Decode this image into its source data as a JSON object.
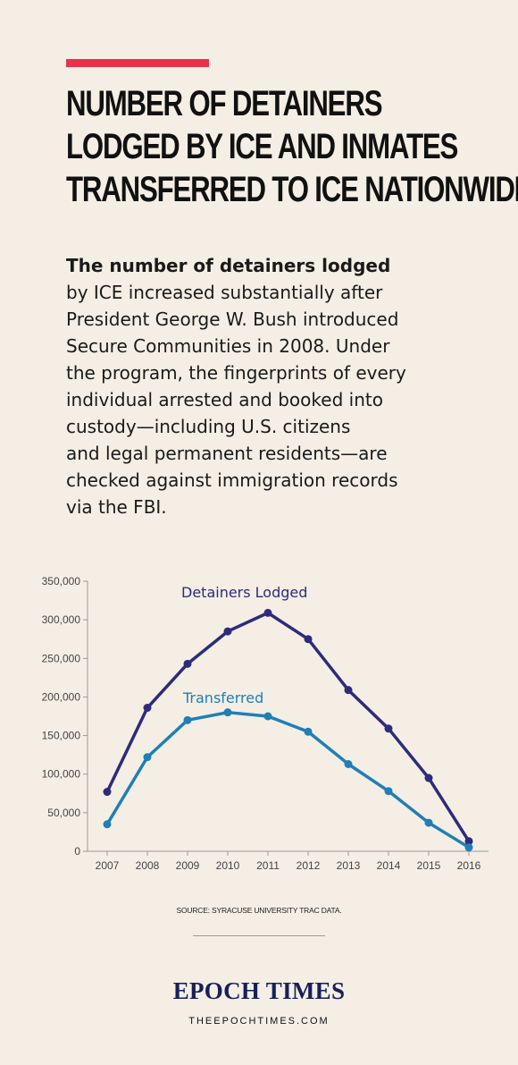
{
  "headline": {
    "lines": [
      "NUMBER OF DETAINERS",
      "LODGED BY ICE AND INMATES",
      "TRANSFERRED TO ICE NATIONWIDE"
    ]
  },
  "intro": {
    "lead": "The number of detainers lodged",
    "lines": [
      "by ICE increased substantially after",
      "President George W. Bush introduced",
      "Secure Communities in 2008. Under",
      "the program, the fingerprints of every",
      "individual arrested and booked into",
      "custody—including U.S. citizens",
      "and legal permanent residents—are",
      "checked against immigration records",
      "via the FBI."
    ]
  },
  "colors": {
    "background": "#f4eee4",
    "accent": "#e8334a",
    "detainers": "#2b2c7c",
    "transferred": "#1f7fb6",
    "brand": "#16205a"
  },
  "chart_data": {
    "type": "line",
    "x": [
      "2007",
      "2008",
      "2009",
      "2010",
      "2011",
      "2012",
      "2013",
      "2014",
      "2015",
      "2016"
    ],
    "series": [
      {
        "name": "Detainers Lodged",
        "values": [
          77000,
          186000,
          243000,
          285000,
          309000,
          275000,
          209000,
          159000,
          95000,
          13000
        ]
      },
      {
        "name": "Transferred",
        "values": [
          35000,
          122000,
          170000,
          180000,
          175000,
          155000,
          113000,
          78000,
          37000,
          5000
        ]
      }
    ],
    "yticks": [
      "0",
      "50,000",
      "100,000",
      "150,000",
      "200,000",
      "250,000",
      "300,000",
      "350,000"
    ],
    "ylim": [
      0,
      350000
    ],
    "grid": false,
    "labels": "inline"
  },
  "source": "SOURCE: SYRACUSE UNIVERSITY TRAC DATA.",
  "brand": {
    "name": "EPOCH TIMES",
    "url": "THEEPOCHTIMES.COM"
  }
}
